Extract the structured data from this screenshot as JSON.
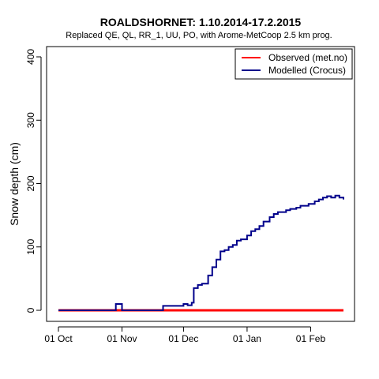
{
  "chart_data": {
    "type": "line",
    "title": "ROALDSHORNET: 1.10.2014-17.2.2015",
    "subtitle": "Replaced QE, QL, RR_1, UU, PO,  with Arome-MetCoop 2.5 km prog.",
    "xlabel": "",
    "ylabel": "Snow depth (cm)",
    "x_ticks": [
      "01 Oct",
      "01 Nov",
      "01 Dec",
      "01 Jan",
      "01 Feb"
    ],
    "y_ticks": [
      0,
      100,
      200,
      300,
      400
    ],
    "xlim": [
      "2014-10-01",
      "2015-02-17"
    ],
    "ylim": [
      0,
      410
    ],
    "grid": false,
    "legend_position": "top-right",
    "series": [
      {
        "name": "Observed (met.no)",
        "color": "#ff0000",
        "x": [
          "2014-10-01",
          "2014-10-26",
          "2014-11-23",
          "2015-02-17"
        ],
        "y": [
          0,
          0,
          0,
          0
        ]
      },
      {
        "name": "Modelled (Crocus)",
        "color": "#00008b",
        "x": [
          "2014-10-01",
          "2014-10-28",
          "2014-10-29",
          "2014-10-31",
          "2014-11-01",
          "2014-11-20",
          "2014-11-21",
          "2014-11-29",
          "2014-12-01",
          "2014-12-03",
          "2014-12-05",
          "2014-12-06",
          "2014-12-08",
          "2014-12-10",
          "2014-12-13",
          "2014-12-15",
          "2014-12-17",
          "2014-12-19",
          "2014-12-21",
          "2014-12-23",
          "2014-12-25",
          "2014-12-27",
          "2014-12-29",
          "2015-01-01",
          "2015-01-03",
          "2015-01-05",
          "2015-01-07",
          "2015-01-09",
          "2015-01-12",
          "2015-01-14",
          "2015-01-16",
          "2015-01-18",
          "2015-01-20",
          "2015-01-22",
          "2015-01-25",
          "2015-01-27",
          "2015-01-29",
          "2015-01-31",
          "2015-02-01",
          "2015-02-03",
          "2015-02-05",
          "2015-02-07",
          "2015-02-09",
          "2015-02-11",
          "2015-02-13",
          "2015-02-15",
          "2015-02-17"
        ],
        "y": [
          0,
          0,
          10,
          10,
          0,
          0,
          7,
          7,
          10,
          8,
          12,
          35,
          40,
          42,
          55,
          68,
          80,
          93,
          95,
          100,
          103,
          110,
          112,
          118,
          125,
          128,
          133,
          140,
          147,
          152,
          155,
          155,
          158,
          160,
          162,
          165,
          165,
          168,
          168,
          172,
          175,
          178,
          180,
          178,
          181,
          178,
          175
        ]
      }
    ]
  }
}
